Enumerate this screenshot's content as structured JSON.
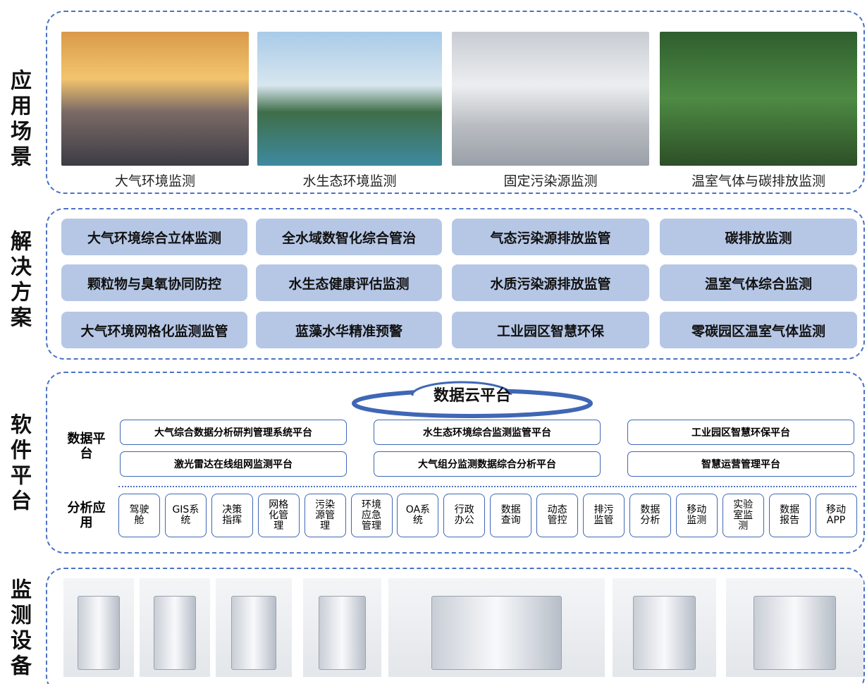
{
  "sections": [
    {
      "label": "应用场景"
    },
    {
      "label": "解决方案"
    },
    {
      "label": "软件平台"
    },
    {
      "label": "监测设备"
    }
  ],
  "scenes": [
    "大气环境监测",
    "水生态环境监测",
    "固定污染源监测",
    "温室气体与碳排放监测"
  ],
  "solutions": [
    [
      "大气环境综合立体监测",
      "全水域数智化综合管治",
      "气态污染源排放监管",
      "碳排放监测"
    ],
    [
      "颗粒物与臭氧协同防控",
      "水生态健康评估监测",
      "水质污染源排放监管",
      "温室气体综合监测"
    ],
    [
      "大气环境网格化监测监管",
      "蓝藻水华精准预警",
      "工业园区智慧环保",
      "零碳园区温室气体监测"
    ]
  ],
  "cloud": "数据云平台",
  "data_platform": {
    "label": "数据平\n台",
    "items": [
      [
        "大气综合数据分析研判管理系统平台",
        "水生态环境综合监测监管平台",
        "工业园区智慧环保平台"
      ],
      [
        "激光雷达在线组网监测平台",
        "大气组分监测数据综合分析平台",
        "智慧运营管理平台"
      ]
    ]
  },
  "analysis": {
    "label": "分析应\n用",
    "items": [
      "驾驶\n舱",
      "GIS系\n统",
      "决策\n指挥",
      "网格\n化管\n理",
      "污染\n源管\n理",
      "环境\n应急\n管理",
      "OA系\n统",
      "行政\n办公",
      "数据\n查询",
      "动态\n管控",
      "排污\n监管",
      "数据\n分析",
      "移动\n监测",
      "实验\n室监\n测",
      "数据\n报告",
      "移动\nAPP"
    ]
  }
}
